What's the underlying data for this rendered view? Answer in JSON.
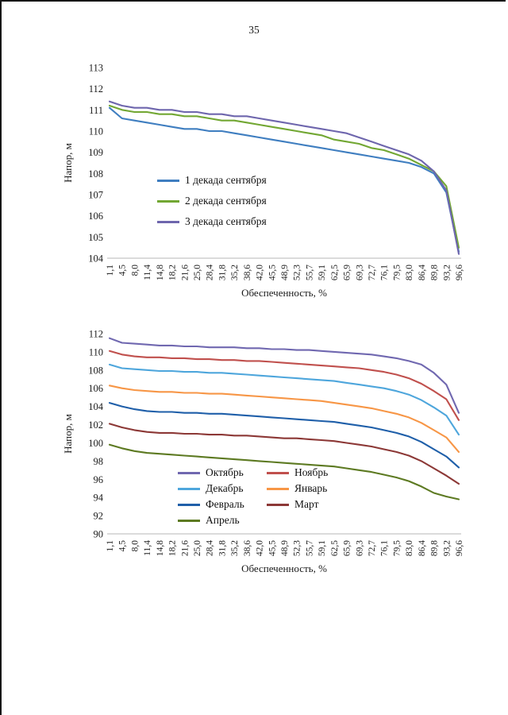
{
  "page": {
    "number": "35"
  },
  "colors": {
    "page_bg": "#ffffff",
    "text": "#1a1a1a",
    "axis_line": "#b7b7b7",
    "scan_edge": "#161616"
  },
  "chart_data": [
    {
      "type": "line",
      "title": "",
      "xlabel": "Обеспеченность, %",
      "ylabel": "Напор, м",
      "ylim": [
        104,
        113
      ],
      "ytick_step": 1,
      "grid": false,
      "legend_position": "inside-left",
      "categories": [
        "1,1",
        "4,5",
        "8,0",
        "11,4",
        "14,8",
        "18,2",
        "21,6",
        "25,0",
        "28,4",
        "31,8",
        "35,2",
        "38,6",
        "42,0",
        "45,5",
        "48,9",
        "52,3",
        "55,7",
        "59,1",
        "62,5",
        "65,9",
        "69,3",
        "72,7",
        "76,1",
        "79,5",
        "83,0",
        "86,4",
        "89,8",
        "93,2",
        "96,6"
      ],
      "series": [
        {
          "name": "1 декада сентября",
          "color": "#3f7ec0",
          "values": [
            111.1,
            110.6,
            110.5,
            110.4,
            110.3,
            110.2,
            110.1,
            110.1,
            110.0,
            110.0,
            109.9,
            109.8,
            109.7,
            109.6,
            109.5,
            109.4,
            109.3,
            109.2,
            109.1,
            109.0,
            108.9,
            108.8,
            108.7,
            108.6,
            108.5,
            108.3,
            108.0,
            107.1,
            104.3
          ]
        },
        {
          "name": "2 декада сентября",
          "color": "#72a733",
          "values": [
            111.2,
            111.0,
            110.9,
            110.9,
            110.8,
            110.8,
            110.7,
            110.7,
            110.6,
            110.5,
            110.5,
            110.4,
            110.3,
            110.2,
            110.1,
            110.0,
            109.9,
            109.8,
            109.6,
            109.5,
            109.4,
            109.2,
            109.1,
            108.9,
            108.7,
            108.4,
            108.1,
            107.4,
            104.5
          ]
        },
        {
          "name": "3 декада сентября",
          "color": "#6e66ad",
          "values": [
            111.4,
            111.2,
            111.1,
            111.1,
            111.0,
            111.0,
            110.9,
            110.9,
            110.8,
            110.8,
            110.7,
            110.7,
            110.6,
            110.5,
            110.4,
            110.3,
            110.2,
            110.1,
            110.0,
            109.9,
            109.7,
            109.5,
            109.3,
            109.1,
            108.9,
            108.6,
            108.1,
            107.2,
            104.2
          ]
        }
      ]
    },
    {
      "type": "line",
      "title": "",
      "xlabel": "Обеспеченность, %",
      "ylabel": "Напор, м",
      "ylim": [
        90,
        112
      ],
      "ytick_step": 2,
      "grid": false,
      "legend_position": "inside-bottom-two-columns",
      "categories": [
        "1,1",
        "4,5",
        "8,0",
        "11,4",
        "14,8",
        "18,2",
        "21,6",
        "25,0",
        "28,4",
        "31,8",
        "35,2",
        "38,6",
        "42,0",
        "45,5",
        "48,9",
        "52,3",
        "55,7",
        "59,1",
        "62,5",
        "65,9",
        "69,3",
        "72,7",
        "76,1",
        "79,5",
        "83,0",
        "86,4",
        "89,8",
        "93,2",
        "96,6"
      ],
      "series": [
        {
          "name": "Октябрь",
          "color": "#7068b0",
          "values": [
            111.5,
            111.0,
            110.9,
            110.8,
            110.7,
            110.7,
            110.6,
            110.6,
            110.5,
            110.5,
            110.5,
            110.4,
            110.4,
            110.3,
            110.3,
            110.2,
            110.2,
            110.1,
            110.0,
            109.9,
            109.8,
            109.7,
            109.5,
            109.3,
            109.0,
            108.6,
            107.7,
            106.4,
            103.3
          ]
        },
        {
          "name": "Ноябрь",
          "color": "#c0504d",
          "values": [
            110.1,
            109.7,
            109.5,
            109.4,
            109.4,
            109.3,
            109.3,
            109.2,
            109.2,
            109.1,
            109.1,
            109.0,
            109.0,
            108.9,
            108.8,
            108.7,
            108.6,
            108.5,
            108.4,
            108.3,
            108.2,
            108.0,
            107.8,
            107.5,
            107.1,
            106.5,
            105.7,
            104.8,
            102.5
          ]
        },
        {
          "name": "Декабрь",
          "color": "#4ea6dc",
          "values": [
            108.6,
            108.2,
            108.1,
            108.0,
            107.9,
            107.9,
            107.8,
            107.8,
            107.7,
            107.7,
            107.6,
            107.5,
            107.4,
            107.3,
            107.2,
            107.1,
            107.0,
            106.9,
            106.8,
            106.6,
            106.4,
            106.2,
            106.0,
            105.7,
            105.3,
            104.7,
            103.9,
            103.0,
            100.9
          ]
        },
        {
          "name": "Январь",
          "color": "#f79646",
          "values": [
            106.3,
            106.0,
            105.8,
            105.7,
            105.6,
            105.6,
            105.5,
            105.5,
            105.4,
            105.4,
            105.3,
            105.2,
            105.1,
            105.0,
            104.9,
            104.8,
            104.7,
            104.6,
            104.4,
            104.2,
            104.0,
            103.8,
            103.5,
            103.2,
            102.8,
            102.2,
            101.4,
            100.6,
            99.0
          ]
        },
        {
          "name": "Февраль",
          "color": "#1f5fa9",
          "values": [
            104.4,
            104.0,
            103.7,
            103.5,
            103.4,
            103.4,
            103.3,
            103.3,
            103.2,
            103.2,
            103.1,
            103.0,
            102.9,
            102.8,
            102.7,
            102.6,
            102.5,
            102.4,
            102.3,
            102.1,
            101.9,
            101.7,
            101.4,
            101.1,
            100.7,
            100.1,
            99.3,
            98.5,
            97.3
          ]
        },
        {
          "name": "Март",
          "color": "#8c3836",
          "values": [
            102.1,
            101.7,
            101.4,
            101.2,
            101.1,
            101.1,
            101.0,
            101.0,
            100.9,
            100.9,
            100.8,
            100.8,
            100.7,
            100.6,
            100.5,
            100.5,
            100.4,
            100.3,
            100.2,
            100.0,
            99.8,
            99.6,
            99.3,
            99.0,
            98.6,
            98.0,
            97.2,
            96.4,
            95.5
          ]
        },
        {
          "name": "Апрель",
          "color": "#5d7a22",
          "values": [
            99.8,
            99.4,
            99.1,
            98.9,
            98.8,
            98.7,
            98.6,
            98.5,
            98.4,
            98.3,
            98.2,
            98.1,
            98.0,
            97.9,
            97.8,
            97.7,
            97.6,
            97.5,
            97.4,
            97.2,
            97.0,
            96.8,
            96.5,
            96.2,
            95.8,
            95.2,
            94.5,
            94.1,
            93.8
          ]
        }
      ]
    }
  ]
}
